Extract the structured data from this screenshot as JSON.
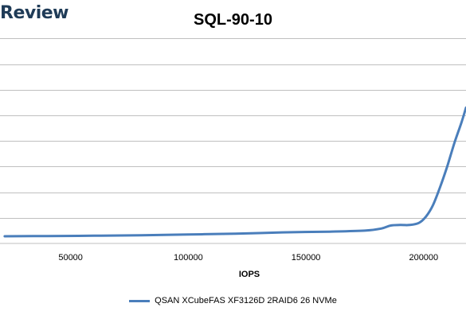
{
  "logo_text": "Review",
  "colors": {
    "series": "#4a7ebb",
    "grid": "#bfbfbf"
  },
  "chart_data": {
    "type": "line",
    "title": "SQL-90-10",
    "xlabel": "IOPS",
    "ylabel": "",
    "xlim": [
      20000,
      218000
    ],
    "ylim": [
      0,
      9.5
    ],
    "grid": true,
    "legend_position": "bottom",
    "x_ticks": [
      "50000",
      "100000",
      "150000",
      "200000"
    ],
    "y_gridlines": [
      1,
      2,
      3,
      4,
      5,
      6,
      7,
      8
    ],
    "series": [
      {
        "name": "QSAN XCubeFAS XF3126D 2RAID6 26 NVMe",
        "x": [
          22000,
          40000,
          60000,
          80000,
          100000,
          120000,
          140000,
          160000,
          175000,
          182000,
          186000,
          190000,
          194000,
          198000,
          201000,
          204000,
          207000,
          210000,
          213000,
          216000,
          218000
        ],
        "y": [
          0.28,
          0.29,
          0.3,
          0.32,
          0.35,
          0.38,
          0.43,
          0.46,
          0.5,
          0.58,
          0.7,
          0.72,
          0.72,
          0.8,
          1.05,
          1.5,
          2.2,
          3.0,
          3.9,
          4.7,
          5.3
        ]
      }
    ]
  }
}
